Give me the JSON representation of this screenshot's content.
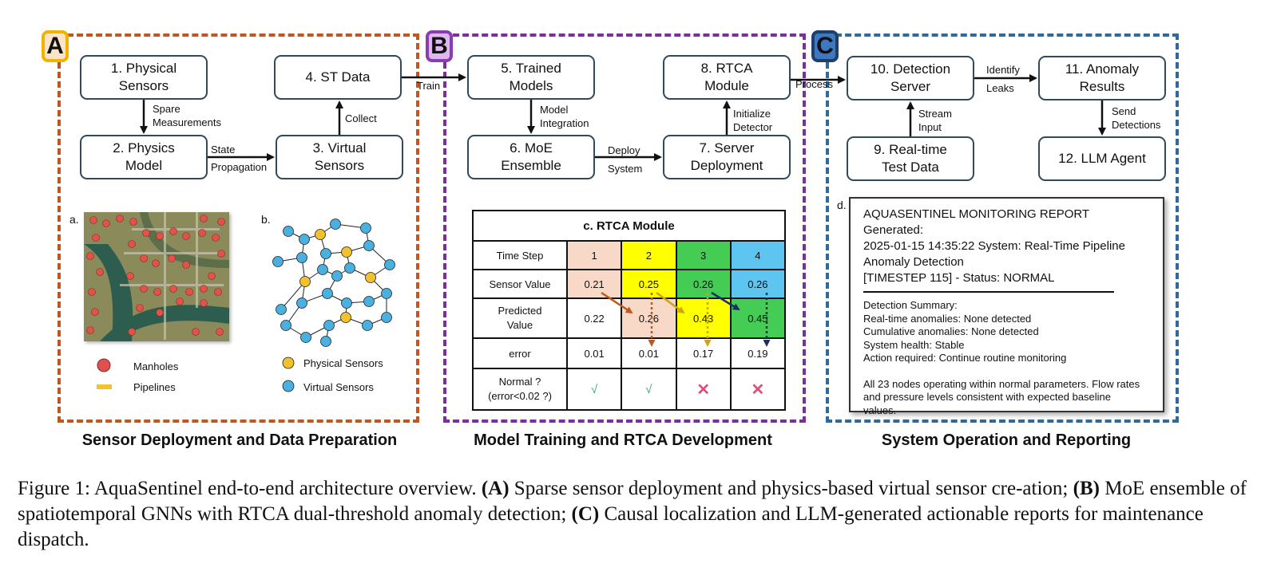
{
  "panels": {
    "a": {
      "badge": "A",
      "title": "Sensor Deployment and Data Preparation",
      "color": "#c0571f",
      "badge_bg": "#fbe3c8",
      "badge_border": "#f0b400"
    },
    "b": {
      "badge": "B",
      "title": "Model Training and RTCA Development",
      "color": "#7b2f9e",
      "badge_bg": "#ddb8ef",
      "badge_border": "#8a3cb0"
    },
    "c": {
      "badge": "C",
      "title": "System Operation and Reporting",
      "color": "#2e6b9c",
      "badge_bg": "#3d78c0",
      "badge_border": "#1d3f6a"
    }
  },
  "boxes": {
    "b1": "1. Physical\nSensors",
    "b2": "2. Physics\nModel",
    "b3": "3. Virtual\nSensors",
    "b4": "4. ST Data",
    "b5": "5. Trained\nModels",
    "b6": "6. MoE\nEnsemble",
    "b7": "7. Server\nDeployment",
    "b8": "8. RTCA\nModule",
    "b9": "9. Real-time\nTest Data",
    "b10": "10. Detection\nServer",
    "b11": "11. Anomaly\nResults",
    "b12": "12. LLM Agent"
  },
  "edges": {
    "spare": "Spare\nMeasurements",
    "state": "State\nPropagation",
    "collect": "Collect",
    "train": "Train",
    "model_integration": "Model\nIntegration",
    "deploy": "Deploy\nSystem",
    "initialize": "Initialize\nDetector",
    "process": "Process",
    "identify": "Identify\nLeaks",
    "stream": "Stream\nInput",
    "send": "Send\nDetections"
  },
  "subfig": {
    "a": "a.",
    "b": "b.",
    "c_title": "c.  RTCA Module",
    "d": "d."
  },
  "legend_a": {
    "manholes": "Manholes",
    "pipelines": "Pipelines"
  },
  "legend_b": {
    "physical": "Physical Sensors",
    "virtual": "Virtual Sensors"
  },
  "legend_colors": {
    "manhole": "#e05050",
    "pipeline": "#f2c230",
    "physical": "#f2c12e",
    "virtual": "#4ab0e0"
  },
  "rtca_table": {
    "rows": [
      {
        "label": "Time Step",
        "cells": [
          "1",
          "2",
          "3",
          "4"
        ]
      },
      {
        "label": "Sensor Value",
        "cells": [
          "0.21",
          "0.25",
          "0.26",
          "0.26"
        ]
      },
      {
        "label": "Predicted\nValue",
        "cells": [
          "0.22",
          "0.26",
          "0.43",
          "0.45"
        ]
      },
      {
        "label": "error",
        "cells": [
          "0.01",
          "0.01",
          "0.17",
          "0.19"
        ]
      },
      {
        "label": "Normal ?\n(error<0.02 ?)",
        "cells": [
          "√",
          "√",
          "✕",
          "✕"
        ]
      }
    ],
    "colors": {
      "peach": "#f8d9c8",
      "yellow": "#ffff00",
      "green": "#44cc55",
      "blue": "#5ec4f0",
      "check": "#3aa874",
      "cross": "#d9507a"
    }
  },
  "report": {
    "header": [
      "AQUASENTINEL MONITORING REPORT Generated:",
      "2025-01-15 14:35:22 System: Real-Time Pipeline",
      "Anomaly Detection",
      "[TIMESTEP 115] - Status: NORMAL"
    ],
    "summary": [
      "Detection Summary:",
      "Real-time anomalies: None detected",
      "Cumulative anomalies: None detected",
      "System health: Stable",
      "Action required: Continue routine monitoring"
    ],
    "footer": [
      "All 23 nodes operating within normal parameters. Flow rates",
      "and pressure levels consistent with expected baseline",
      "values."
    ]
  },
  "caption": {
    "prefix": "Figure 1: AquaSentinel end-to-end architecture overview.",
    "a_label": "(A)",
    "a_text": "Sparse sensor deployment and physics-based virtual sensor cre-ation;",
    "b_label": "(B)",
    "b_text": "MoE ensemble of spatiotemporal GNNs with RTCA dual-threshold anomaly detection;",
    "c_label": "(C)",
    "c_text": "Causal localization and LLM-generated actionable reports for maintenance dispatch."
  }
}
